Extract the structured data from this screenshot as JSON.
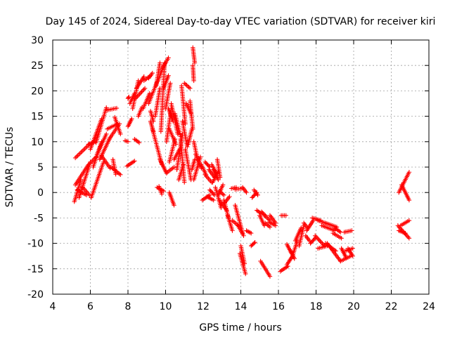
{
  "chart_data": {
    "type": "scatter",
    "title": "Day 145 of 2024, Sidereal Day-to-day VTEC variation (SDTVAR) for receiver kiri",
    "xlabel": "GPS time / hours",
    "ylabel": "SDTVAR / TECUs",
    "xlim": [
      4,
      24
    ],
    "ylim": [
      -20,
      30
    ],
    "grid": true,
    "marker": "plus",
    "color": "#ff0000",
    "x_ticks": [
      "4",
      "6",
      "8",
      "10",
      "12",
      "14",
      "16",
      "18",
      "20",
      "22",
      "24"
    ],
    "y_ticks": [
      "30",
      "25",
      "20",
      "15",
      "10",
      "5",
      "0",
      "-5",
      "-10",
      "-15",
      "-20"
    ],
    "segments": [
      {
        "from": [
          5.15,
          -1.8
        ],
        "to": [
          5.5,
          2.5
        ]
      },
      {
        "from": [
          5.2,
          1.5
        ],
        "to": [
          5.9,
          5.5
        ]
      },
      {
        "from": [
          5.3,
          0.5
        ],
        "to": [
          5.8,
          -0.5
        ]
      },
      {
        "from": [
          5.4,
          -1.0
        ],
        "to": [
          6.0,
          6.0
        ]
      },
      {
        "from": [
          5.6,
          1.0
        ],
        "to": [
          5.95,
          -0.5
        ]
      },
      {
        "from": [
          5.2,
          6.8
        ],
        "to": [
          5.95,
          9.5
        ]
      },
      {
        "from": [
          5.9,
          9.5
        ],
        "to": [
          6.25,
          10.0
        ]
      },
      {
        "from": [
          6.0,
          5.8
        ],
        "to": [
          6.3,
          7.0
        ]
      },
      {
        "from": [
          6.05,
          -1.0
        ],
        "to": [
          6.7,
          6.0
        ]
      },
      {
        "from": [
          6.0,
          8.5
        ],
        "to": [
          6.6,
          14.5
        ]
      },
      {
        "from": [
          6.3,
          9.8
        ],
        "to": [
          6.85,
          16.7
        ]
      },
      {
        "from": [
          6.15,
          5.0
        ],
        "to": [
          6.6,
          10.0
        ]
      },
      {
        "from": [
          6.5,
          6.5
        ],
        "to": [
          7.05,
          10.8
        ]
      },
      {
        "from": [
          6.35,
          7.5
        ],
        "to": [
          6.85,
          11.5
        ]
      },
      {
        "from": [
          6.6,
          7.2
        ],
        "to": [
          7.05,
          4.8
        ]
      },
      {
        "from": [
          6.9,
          16.2
        ],
        "to": [
          7.4,
          16.6
        ]
      },
      {
        "from": [
          6.9,
          12.5
        ],
        "to": [
          7.45,
          13.5
        ]
      },
      {
        "from": [
          7.0,
          10.5
        ],
        "to": [
          7.55,
          13.5
        ]
      },
      {
        "from": [
          7.1,
          5.0
        ],
        "to": [
          7.6,
          3.5
        ]
      },
      {
        "from": [
          7.2,
          6.5
        ],
        "to": [
          7.35,
          3.6
        ]
      },
      {
        "from": [
          7.3,
          14.8
        ],
        "to": [
          7.6,
          11.5
        ]
      },
      {
        "from": [
          7.85,
          10.2
        ],
        "to": [
          8.0,
          10.0
        ]
      },
      {
        "from": [
          7.95,
          5.2
        ],
        "to": [
          8.35,
          6.2
        ]
      },
      {
        "from": [
          8.0,
          13.0
        ],
        "to": [
          8.2,
          14.5
        ]
      },
      {
        "from": [
          8.0,
          18.5
        ],
        "to": [
          8.05,
          18.8
        ]
      },
      {
        "from": [
          8.1,
          17.5
        ],
        "to": [
          8.35,
          19.5
        ]
      },
      {
        "from": [
          8.25,
          16.5
        ],
        "to": [
          8.55,
          22.0
        ]
      },
      {
        "from": [
          8.35,
          10.5
        ],
        "to": [
          8.6,
          9.8
        ]
      },
      {
        "from": [
          8.4,
          18.5
        ],
        "to": [
          8.9,
          20.5
        ]
      },
      {
        "from": [
          8.45,
          20.5
        ],
        "to": [
          8.85,
          22.8
        ]
      },
      {
        "from": [
          8.55,
          15.0
        ],
        "to": [
          8.75,
          16.8
        ]
      },
      {
        "from": [
          8.8,
          16.5
        ],
        "to": [
          9.15,
          19.5
        ]
      },
      {
        "from": [
          8.85,
          22.0
        ],
        "to": [
          9.2,
          23.0
        ]
      },
      {
        "from": [
          9.1,
          22.5
        ],
        "to": [
          9.3,
          23.5
        ]
      },
      {
        "from": [
          9.1,
          17.5
        ],
        "to": [
          9.55,
          21.8
        ]
      },
      {
        "from": [
          9.2,
          16.0
        ],
        "to": [
          9.35,
          14.0
        ]
      },
      {
        "from": [
          9.2,
          14.0
        ],
        "to": [
          9.35,
          12.0
        ]
      },
      {
        "from": [
          9.3,
          12.5
        ],
        "to": [
          9.55,
          9.0
        ]
      },
      {
        "from": [
          9.45,
          15.0
        ],
        "to": [
          9.7,
          20.5
        ]
      },
      {
        "from": [
          9.5,
          21.0
        ],
        "to": [
          9.7,
          25.5
        ]
      },
      {
        "from": [
          9.6,
          22.0
        ],
        "to": [
          9.9,
          25.0
        ]
      },
      {
        "from": [
          9.55,
          9.0
        ],
        "to": [
          9.8,
          5.5
        ]
      },
      {
        "from": [
          9.55,
          1.0
        ],
        "to": [
          9.9,
          0.3
        ]
      },
      {
        "from": [
          9.65,
          1.2
        ],
        "to": [
          9.8,
          -0.3
        ]
      },
      {
        "from": [
          9.7,
          6.5
        ],
        "to": [
          10.05,
          3.8
        ]
      },
      {
        "from": [
          9.75,
          12.0
        ],
        "to": [
          9.95,
          25.5
        ]
      },
      {
        "from": [
          9.85,
          24.5
        ],
        "to": [
          10.15,
          26.5
        ]
      },
      {
        "from": [
          9.9,
          20.5
        ],
        "to": [
          10.15,
          23.0
        ]
      },
      {
        "from": [
          10.0,
          16.5
        ],
        "to": [
          10.25,
          21.5
        ]
      },
      {
        "from": [
          10.05,
          10.0
        ],
        "to": [
          10.3,
          16.5
        ]
      },
      {
        "from": [
          10.1,
          4.0
        ],
        "to": [
          10.45,
          5.0
        ]
      },
      {
        "from": [
          10.15,
          16.5
        ],
        "to": [
          10.4,
          14.0
        ]
      },
      {
        "from": [
          10.2,
          12.5
        ],
        "to": [
          10.55,
          9.5
        ]
      },
      {
        "from": [
          10.2,
          6.0
        ],
        "to": [
          10.5,
          10.5
        ]
      },
      {
        "from": [
          10.2,
          0.0
        ],
        "to": [
          10.45,
          -2.5
        ]
      },
      {
        "from": [
          10.3,
          17.5
        ],
        "to": [
          10.65,
          11.5
        ]
      },
      {
        "from": [
          10.45,
          6.5
        ],
        "to": [
          10.75,
          8.5
        ]
      },
      {
        "from": [
          10.5,
          15.5
        ],
        "to": [
          10.8,
          11.0
        ]
      },
      {
        "from": [
          10.6,
          4.5
        ],
        "to": [
          10.9,
          11.5
        ]
      },
      {
        "from": [
          10.7,
          2.5
        ],
        "to": [
          10.95,
          5.5
        ]
      },
      {
        "from": [
          10.8,
          10.5
        ],
        "to": [
          11.0,
          2.0
        ]
      },
      {
        "from": [
          10.85,
          21.0
        ],
        "to": [
          11.05,
          13.5
        ]
      },
      {
        "from": [
          10.9,
          14.0
        ],
        "to": [
          11.15,
          9.0
        ]
      },
      {
        "from": [
          11.0,
          21.5
        ],
        "to": [
          11.3,
          20.5
        ]
      },
      {
        "from": [
          11.05,
          8.5
        ],
        "to": [
          11.35,
          2.5
        ]
      },
      {
        "from": [
          11.1,
          17.5
        ],
        "to": [
          11.35,
          15.5
        ]
      },
      {
        "from": [
          11.2,
          9.5
        ],
        "to": [
          11.4,
          12.5
        ]
      },
      {
        "from": [
          11.3,
          18.0
        ],
        "to": [
          11.45,
          12.5
        ]
      },
      {
        "from": [
          11.4,
          4.5
        ],
        "to": [
          11.55,
          6.5
        ]
      },
      {
        "from": [
          11.45,
          28.5
        ],
        "to": [
          11.55,
          25.5
        ]
      },
      {
        "from": [
          11.45,
          25.0
        ],
        "to": [
          11.5,
          22.0
        ]
      },
      {
        "from": [
          11.5,
          2.5
        ],
        "to": [
          11.85,
          7.0
        ]
      },
      {
        "from": [
          11.5,
          10.0
        ],
        "to": [
          11.7,
          6.5
        ]
      },
      {
        "from": [
          11.6,
          7.5
        ],
        "to": [
          11.9,
          4.8
        ]
      },
      {
        "from": [
          11.9,
          5.5
        ],
        "to": [
          12.15,
          3.5
        ]
      },
      {
        "from": [
          11.95,
          -1.5
        ],
        "to": [
          12.35,
          -0.5
        ]
      },
      {
        "from": [
          12.1,
          6.0
        ],
        "to": [
          12.35,
          5.0
        ]
      },
      {
        "from": [
          12.1,
          3.5
        ],
        "to": [
          12.45,
          2.0
        ]
      },
      {
        "from": [
          12.2,
          -0.8
        ],
        "to": [
          12.55,
          -1.5
        ]
      },
      {
        "from": [
          12.3,
          4.5
        ],
        "to": [
          12.6,
          3.0
        ]
      },
      {
        "from": [
          12.35,
          0.5
        ],
        "to": [
          12.6,
          -0.5
        ]
      },
      {
        "from": [
          12.45,
          5.5
        ],
        "to": [
          12.7,
          3.8
        ]
      },
      {
        "from": [
          12.5,
          2.0
        ],
        "to": [
          12.8,
          4.0
        ]
      },
      {
        "from": [
          12.55,
          4.5
        ],
        "to": [
          12.8,
          2.5
        ]
      },
      {
        "from": [
          12.65,
          1.0
        ],
        "to": [
          12.95,
          -3.0
        ]
      },
      {
        "from": [
          12.75,
          6.5
        ],
        "to": [
          12.9,
          3.0
        ]
      },
      {
        "from": [
          12.8,
          -0.5
        ],
        "to": [
          13.05,
          1.5
        ]
      },
      {
        "from": [
          12.85,
          0.3
        ],
        "to": [
          13.1,
          -0.5
        ]
      },
      {
        "from": [
          12.85,
          -1.5
        ],
        "to": [
          13.25,
          -3.5
        ]
      },
      {
        "from": [
          13.1,
          -1.5
        ],
        "to": [
          13.35,
          -5.0
        ]
      },
      {
        "from": [
          13.15,
          -2.0
        ],
        "to": [
          13.4,
          -0.8
        ]
      },
      {
        "from": [
          13.3,
          -4.5
        ],
        "to": [
          13.55,
          -7.5
        ]
      },
      {
        "from": [
          13.5,
          0.8
        ],
        "to": [
          13.75,
          1.0
        ]
      },
      {
        "from": [
          13.55,
          -5.5
        ],
        "to": [
          13.95,
          -6.8
        ]
      },
      {
        "from": [
          13.7,
          0.6
        ],
        "to": [
          14.05,
          0.8
        ]
      },
      {
        "from": [
          13.7,
          -2.5
        ],
        "to": [
          14.1,
          -8.0
        ]
      },
      {
        "from": [
          13.85,
          -6.5
        ],
        "to": [
          14.15,
          -8.5
        ]
      },
      {
        "from": [
          13.95,
          -12.0
        ],
        "to": [
          14.25,
          -16.0
        ]
      },
      {
        "from": [
          14.0,
          -10.5
        ],
        "to": [
          14.2,
          -14.0
        ]
      },
      {
        "from": [
          14.1,
          1.0
        ],
        "to": [
          14.3,
          0.0
        ]
      },
      {
        "from": [
          14.3,
          -7.5
        ],
        "to": [
          14.55,
          -8.0
        ]
      },
      {
        "from": [
          14.55,
          -10.5
        ],
        "to": [
          14.75,
          -9.8
        ]
      },
      {
        "from": [
          14.6,
          -1.0
        ],
        "to": [
          14.85,
          0.0
        ]
      },
      {
        "from": [
          14.7,
          0.5
        ],
        "to": [
          14.9,
          -0.5
        ]
      },
      {
        "from": [
          14.85,
          -3.5
        ],
        "to": [
          15.1,
          -4.2
        ]
      },
      {
        "from": [
          15.0,
          -4.5
        ],
        "to": [
          15.25,
          -6.5
        ]
      },
      {
        "from": [
          15.05,
          -13.5
        ],
        "to": [
          15.55,
          -16.5
        ]
      },
      {
        "from": [
          15.1,
          -3.8
        ],
        "to": [
          15.3,
          -4.5
        ]
      },
      {
        "from": [
          15.25,
          -4.5
        ],
        "to": [
          15.55,
          -5.5
        ]
      },
      {
        "from": [
          15.3,
          -6.0
        ],
        "to": [
          15.55,
          -6.8
        ]
      },
      {
        "from": [
          15.5,
          -5.8
        ],
        "to": [
          15.85,
          -6.5
        ]
      },
      {
        "from": [
          15.55,
          -4.5
        ],
        "to": [
          15.85,
          -6.0
        ]
      },
      {
        "from": [
          16.15,
          -4.5
        ],
        "to": [
          16.4,
          -4.5
        ]
      },
      {
        "from": [
          16.1,
          -15.5
        ],
        "to": [
          16.5,
          -14.5
        ]
      },
      {
        "from": [
          16.45,
          -14.2
        ],
        "to": [
          16.75,
          -12.5
        ]
      },
      {
        "from": [
          16.45,
          -10.2
        ],
        "to": [
          16.7,
          -12.0
        ]
      },
      {
        "from": [
          16.65,
          -11.5
        ],
        "to": [
          16.85,
          -13.0
        ]
      },
      {
        "from": [
          16.75,
          -12.5
        ],
        "to": [
          17.0,
          -9.5
        ]
      },
      {
        "from": [
          16.9,
          -9.5
        ],
        "to": [
          17.2,
          -7.0
        ]
      },
      {
        "from": [
          17.1,
          -10.5
        ],
        "to": [
          17.35,
          -6.5
        ]
      },
      {
        "from": [
          17.35,
          -6.0
        ],
        "to": [
          17.55,
          -7.0
        ]
      },
      {
        "from": [
          17.45,
          -8.5
        ],
        "to": [
          17.65,
          -9.5
        ]
      },
      {
        "from": [
          17.5,
          -7.5
        ],
        "to": [
          17.85,
          -5.5
        ]
      },
      {
        "from": [
          17.7,
          -10.0
        ],
        "to": [
          17.95,
          -9.0
        ]
      },
      {
        "from": [
          17.8,
          -5.0
        ],
        "to": [
          18.25,
          -5.5
        ]
      },
      {
        "from": [
          17.95,
          -8.5
        ],
        "to": [
          18.45,
          -10.5
        ]
      },
      {
        "from": [
          18.1,
          -5.5
        ],
        "to": [
          18.5,
          -6.0
        ]
      },
      {
        "from": [
          18.1,
          -11.0
        ],
        "to": [
          18.6,
          -10.5
        ]
      },
      {
        "from": [
          18.3,
          -6.5
        ],
        "to": [
          19.0,
          -7.5
        ]
      },
      {
        "from": [
          18.5,
          -6.0
        ],
        "to": [
          19.1,
          -6.8
        ]
      },
      {
        "from": [
          18.5,
          -10.0
        ],
        "to": [
          19.05,
          -11.5
        ]
      },
      {
        "from": [
          18.6,
          -10.0
        ],
        "to": [
          19.3,
          -13.5
        ]
      },
      {
        "from": [
          18.9,
          -8.0
        ],
        "to": [
          19.35,
          -9.0
        ]
      },
      {
        "from": [
          19.0,
          -7.0
        ],
        "to": [
          19.3,
          -7.8
        ]
      },
      {
        "from": [
          19.3,
          -13.5
        ],
        "to": [
          19.85,
          -12.5
        ]
      },
      {
        "from": [
          19.35,
          -11.0
        ],
        "to": [
          19.6,
          -12.8
        ]
      },
      {
        "from": [
          19.5,
          -7.8
        ],
        "to": [
          19.9,
          -7.5
        ]
      },
      {
        "from": [
          19.7,
          -11.0
        ],
        "to": [
          19.95,
          -12.5
        ]
      },
      {
        "from": [
          19.55,
          -11.5
        ],
        "to": [
          19.95,
          -11.0
        ]
      },
      {
        "from": [
          22.4,
          0.0
        ],
        "to": [
          22.95,
          4.0
        ]
      },
      {
        "from": [
          22.55,
          1.5
        ],
        "to": [
          22.95,
          -1.5
        ]
      },
      {
        "from": [
          22.35,
          -6.5
        ],
        "to": [
          22.95,
          -9.0
        ]
      },
      {
        "from": [
          22.5,
          -6.5
        ],
        "to": [
          22.95,
          -5.5
        ]
      },
      {
        "from": [
          22.4,
          -7.5
        ],
        "to": [
          22.75,
          -8.0
        ]
      }
    ]
  }
}
